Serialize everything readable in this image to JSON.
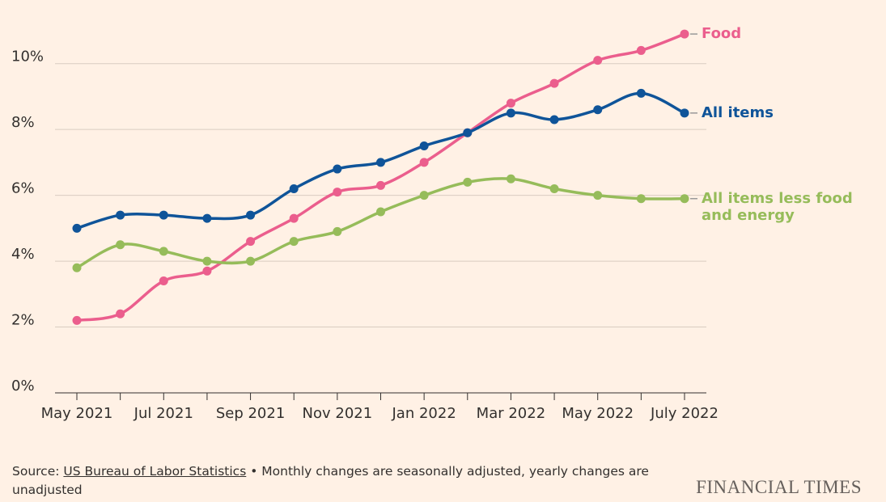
{
  "chart_data": {
    "type": "line",
    "categories": [
      "May 2021",
      null,
      "Jul 2021",
      null,
      "Sep 2021",
      null,
      "Nov 2021",
      null,
      "Jan 2022",
      null,
      "Mar 2022",
      null,
      "May 2022",
      null,
      "July 2022"
    ],
    "series": [
      {
        "name": "Food",
        "color": "#eb5e8d",
        "values": [
          2.2,
          2.4,
          3.4,
          3.7,
          4.6,
          5.3,
          6.1,
          6.3,
          7.0,
          7.9,
          8.8,
          9.4,
          10.1,
          10.4,
          10.9
        ]
      },
      {
        "name": "All items",
        "color": "#0f5499",
        "values": [
          5.0,
          5.4,
          5.4,
          5.3,
          5.4,
          6.2,
          6.8,
          7.0,
          7.5,
          7.9,
          8.5,
          8.3,
          8.6,
          9.1,
          8.5
        ]
      },
      {
        "name": "All items less food and energy",
        "color": "#96bc5a",
        "values": [
          3.8,
          4.5,
          4.3,
          4.0,
          4.0,
          4.6,
          4.9,
          5.5,
          6.0,
          6.4,
          6.5,
          6.2,
          6.0,
          5.9,
          5.9
        ]
      }
    ],
    "ylim": [
      0,
      11
    ],
    "yticks": [
      {
        "value": 0,
        "label": "0%"
      },
      {
        "value": 2,
        "label": "2%"
      },
      {
        "value": 4,
        "label": "4%"
      },
      {
        "value": 6,
        "label": "6%"
      },
      {
        "value": 8,
        "label": "8%"
      },
      {
        "value": 10,
        "label": "10%"
      }
    ],
    "grid": true,
    "source_label": "Source:",
    "source": "US Bureau of Labor Statistics",
    "note": "• Monthly changes are seasonally adjusted, yearly changes are unadjusted",
    "brand": "FINANCIAL TIMES"
  }
}
